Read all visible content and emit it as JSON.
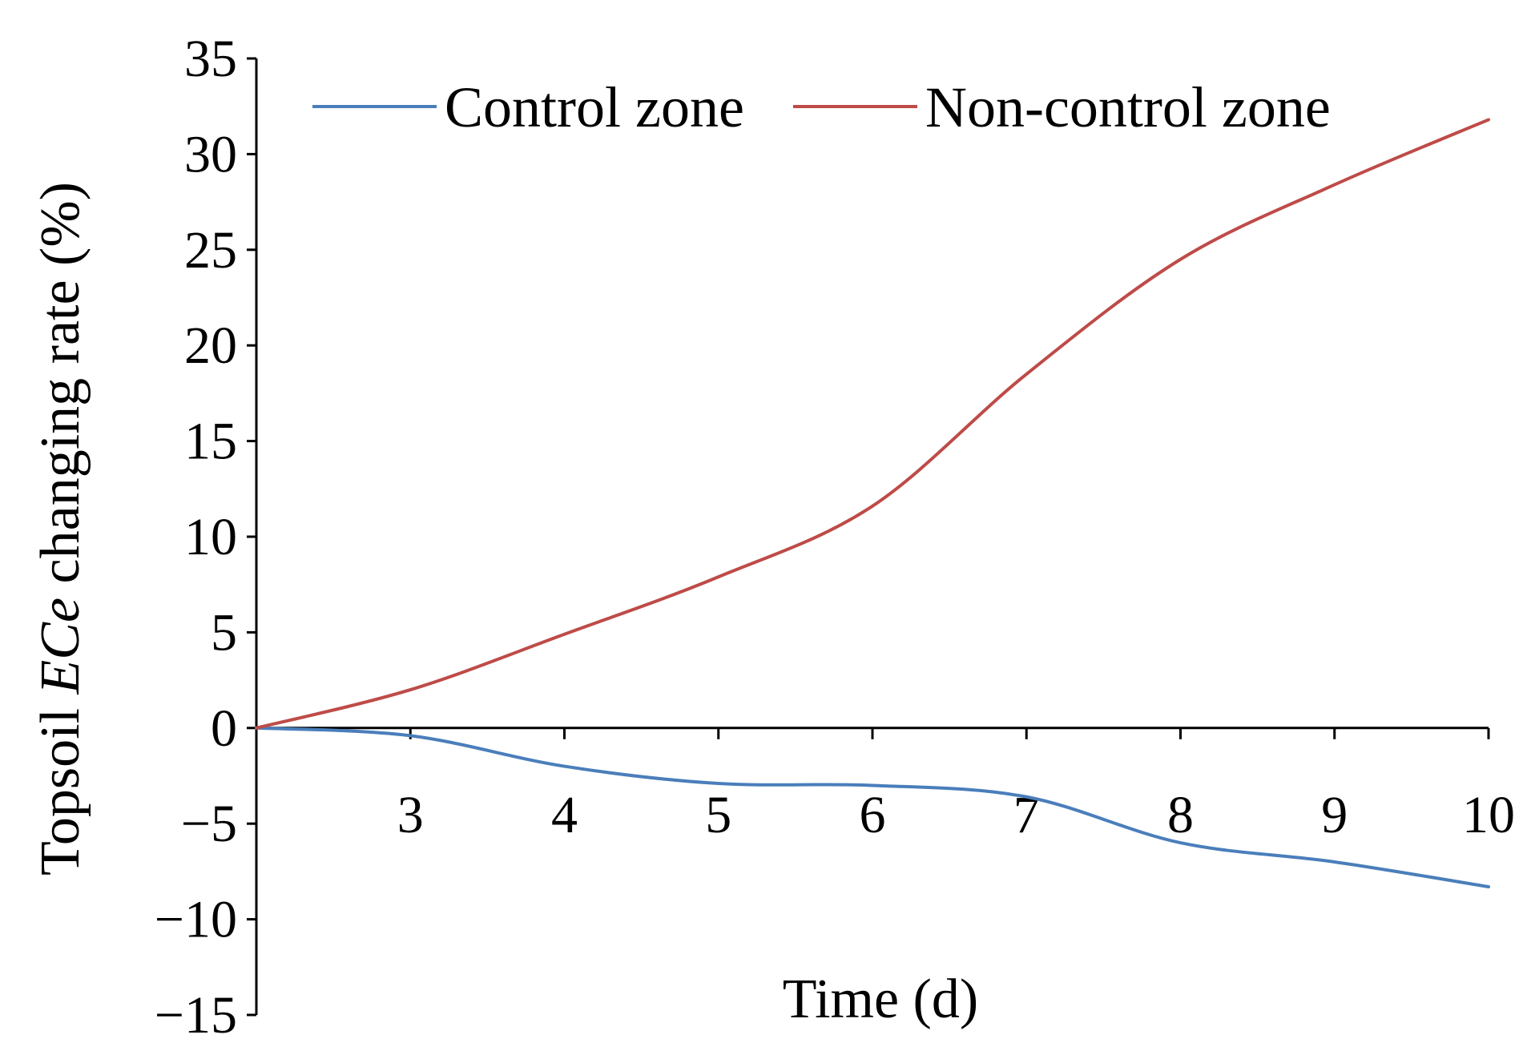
{
  "chart_data": {
    "type": "line",
    "title": "",
    "xlabel": "Time (d)",
    "ylabel": {
      "prefix": "Topsoil ",
      "italic": "ECe",
      "suffix": " changing rate (%)"
    },
    "x": [
      2,
      3,
      4,
      5,
      6,
      7,
      8,
      9,
      10
    ],
    "xticks": [
      3,
      4,
      5,
      6,
      7,
      8,
      9,
      10
    ],
    "xlim": [
      2,
      10
    ],
    "yticks": [
      35,
      30,
      25,
      20,
      15,
      10,
      5,
      0,
      -5,
      -10,
      -15
    ],
    "ytick_labels": [
      "35",
      "30",
      "25",
      "20",
      "15",
      "10",
      "5",
      "0",
      "−5",
      "−10",
      "−15"
    ],
    "ylim": [
      -15,
      35
    ],
    "grid": false,
    "legend": "top",
    "series": [
      {
        "name": "Control zone",
        "color": "#4A7EBB",
        "values": [
          0,
          -0.4,
          -2.0,
          -2.9,
          -3.0,
          -3.6,
          -6.0,
          -7.0,
          -8.3
        ]
      },
      {
        "name": "Non-control zone",
        "color": "#BE4B48",
        "values": [
          0,
          2.0,
          4.9,
          7.9,
          11.6,
          18.5,
          24.5,
          28.4,
          31.8
        ]
      }
    ]
  }
}
